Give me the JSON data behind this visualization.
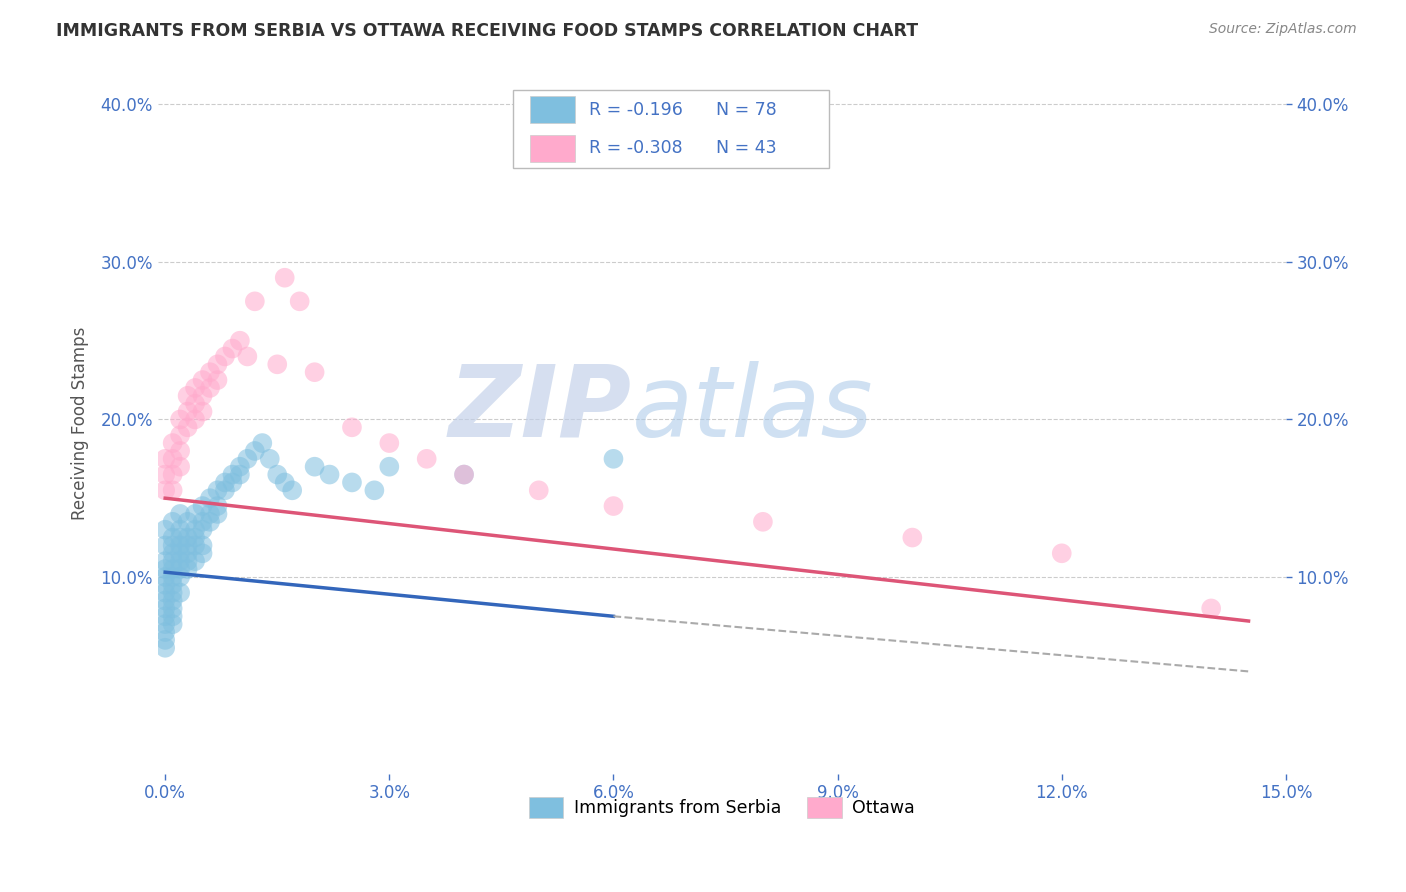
{
  "title": "IMMIGRANTS FROM SERBIA VS OTTAWA RECEIVING FOOD STAMPS CORRELATION CHART",
  "source": "Source: ZipAtlas.com",
  "ylabel": "Receiving Food Stamps",
  "series": [
    {
      "name": "Immigrants from Serbia",
      "R": -0.196,
      "N": 78,
      "color": "#7fbfdf",
      "line_color": "#3366bb",
      "x": [
        0.0,
        0.0,
        0.0,
        0.0,
        0.0,
        0.0,
        0.0,
        0.0,
        0.0,
        0.0,
        0.0,
        0.0,
        0.0,
        0.0,
        0.001,
        0.001,
        0.001,
        0.001,
        0.001,
        0.001,
        0.001,
        0.001,
        0.001,
        0.001,
        0.001,
        0.001,
        0.001,
        0.002,
        0.002,
        0.002,
        0.002,
        0.002,
        0.002,
        0.002,
        0.002,
        0.002,
        0.003,
        0.003,
        0.003,
        0.003,
        0.003,
        0.003,
        0.004,
        0.004,
        0.004,
        0.004,
        0.004,
        0.005,
        0.005,
        0.005,
        0.005,
        0.005,
        0.006,
        0.006,
        0.006,
        0.007,
        0.007,
        0.007,
        0.008,
        0.008,
        0.009,
        0.009,
        0.01,
        0.01,
        0.011,
        0.012,
        0.013,
        0.014,
        0.015,
        0.016,
        0.017,
        0.02,
        0.022,
        0.025,
        0.028,
        0.03,
        0.04,
        0.06
      ],
      "y": [
        0.13,
        0.12,
        0.11,
        0.105,
        0.1,
        0.095,
        0.09,
        0.085,
        0.08,
        0.075,
        0.07,
        0.065,
        0.06,
        0.055,
        0.135,
        0.125,
        0.12,
        0.115,
        0.11,
        0.105,
        0.1,
        0.095,
        0.09,
        0.085,
        0.08,
        0.075,
        0.07,
        0.14,
        0.13,
        0.125,
        0.12,
        0.115,
        0.11,
        0.105,
        0.1,
        0.09,
        0.135,
        0.125,
        0.12,
        0.115,
        0.11,
        0.105,
        0.14,
        0.13,
        0.125,
        0.12,
        0.11,
        0.145,
        0.135,
        0.13,
        0.12,
        0.115,
        0.15,
        0.14,
        0.135,
        0.155,
        0.145,
        0.14,
        0.16,
        0.155,
        0.165,
        0.16,
        0.17,
        0.165,
        0.175,
        0.18,
        0.185,
        0.175,
        0.165,
        0.16,
        0.155,
        0.17,
        0.165,
        0.16,
        0.155,
        0.17,
        0.165,
        0.175
      ]
    },
    {
      "name": "Ottawa",
      "R": -0.308,
      "N": 43,
      "color": "#ffaacc",
      "line_color": "#dd5577",
      "x": [
        0.0,
        0.0,
        0.0,
        0.001,
        0.001,
        0.001,
        0.001,
        0.002,
        0.002,
        0.002,
        0.002,
        0.003,
        0.003,
        0.003,
        0.004,
        0.004,
        0.004,
        0.005,
        0.005,
        0.005,
        0.006,
        0.006,
        0.007,
        0.007,
        0.008,
        0.009,
        0.01,
        0.011,
        0.012,
        0.015,
        0.016,
        0.018,
        0.02,
        0.025,
        0.03,
        0.035,
        0.04,
        0.05,
        0.06,
        0.08,
        0.1,
        0.12,
        0.14
      ],
      "y": [
        0.175,
        0.165,
        0.155,
        0.185,
        0.175,
        0.165,
        0.155,
        0.2,
        0.19,
        0.18,
        0.17,
        0.215,
        0.205,
        0.195,
        0.22,
        0.21,
        0.2,
        0.225,
        0.215,
        0.205,
        0.23,
        0.22,
        0.235,
        0.225,
        0.24,
        0.245,
        0.25,
        0.24,
        0.275,
        0.235,
        0.29,
        0.275,
        0.23,
        0.195,
        0.185,
        0.175,
        0.165,
        0.155,
        0.145,
        0.135,
        0.125,
        0.115,
        0.08
      ]
    }
  ],
  "trend_lines": [
    {
      "x_start": 0.0,
      "x_end": 0.06,
      "y_start": 0.103,
      "y_end": 0.075,
      "color": "#3366bb",
      "solid": true
    },
    {
      "x_start": 0.06,
      "x_end": 0.145,
      "y_start": 0.075,
      "y_end": 0.04,
      "color": "#aaaaaa",
      "solid": false
    },
    {
      "x_start": 0.0,
      "x_end": 0.145,
      "y_start": 0.15,
      "y_end": 0.072,
      "color": "#dd5577",
      "solid": true
    }
  ],
  "xlim": [
    -0.001,
    0.15
  ],
  "ylim": [
    -0.025,
    0.42
  ],
  "xticks": [
    0.0,
    0.03,
    0.06,
    0.09,
    0.12,
    0.15
  ],
  "xticklabels": [
    "0.0%",
    "3.0%",
    "6.0%",
    "9.0%",
    "12.0%",
    "15.0%"
  ],
  "yticks_left": [
    0.1,
    0.2,
    0.3,
    0.4
  ],
  "yticklabels_left": [
    "10.0%",
    "20.0%",
    "30.0%",
    "40.0%"
  ],
  "yticks_right": [
    0.1,
    0.2,
    0.3,
    0.4
  ],
  "yticklabels_right": [
    "10.0%",
    "20.0%",
    "30.0%",
    "40.0%"
  ],
  "watermark_zip": "ZIP",
  "watermark_atlas": "atlas",
  "background_color": "#ffffff",
  "grid_color": "#cccccc",
  "axis_color": "#4472c4",
  "title_color": "#333333",
  "source_color": "#888888",
  "legend_text_color": "#4472c4"
}
